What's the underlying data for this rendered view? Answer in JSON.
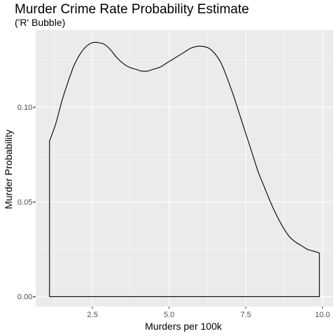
{
  "chart_data": {
    "type": "area",
    "title": "Murder Crime Rate Probability Estimate",
    "subtitle": "('R' Bubble)",
    "xlabel": "Murders per 100k",
    "ylabel": "Murder Probability",
    "xlim": [
      0.65,
      10.35
    ],
    "ylim": [
      -0.0053,
      0.1406
    ],
    "x_ticks": [
      {
        "value": 2.5,
        "label": "2.5"
      },
      {
        "value": 5.0,
        "label": "5.0"
      },
      {
        "value": 7.5,
        "label": "7.5"
      },
      {
        "value": 10.0,
        "label": "10.0"
      }
    ],
    "y_ticks": [
      {
        "value": 0.0,
        "label": "0.00-"
      },
      {
        "value": 0.05,
        "label": "0.05-"
      },
      {
        "value": 0.1,
        "label": "0.10-"
      }
    ],
    "grid": true,
    "fill": "none",
    "line_color": "#000000",
    "series": [
      {
        "x": [
          1.1,
          1.3,
          1.5,
          1.7,
          1.9,
          2.1,
          2.3,
          2.5,
          2.7,
          2.9,
          3.1,
          3.3,
          3.5,
          3.7,
          3.9,
          4.1,
          4.3,
          4.5,
          4.7,
          4.9,
          5.1,
          5.3,
          5.5,
          5.7,
          5.9,
          6.1,
          6.3,
          6.5,
          6.7,
          6.9,
          7.1,
          7.3,
          7.5,
          7.7,
          7.9,
          8.1,
          8.3,
          8.5,
          8.7,
          8.9,
          9.1,
          9.3,
          9.5,
          9.7,
          9.9
        ],
        "y": [
          0.082,
          0.091,
          0.103,
          0.113,
          0.122,
          0.128,
          0.132,
          0.134,
          0.134,
          0.133,
          0.13,
          0.126,
          0.123,
          0.121,
          0.12,
          0.119,
          0.119,
          0.12,
          0.121,
          0.123,
          0.125,
          0.127,
          0.129,
          0.131,
          0.132,
          0.132,
          0.131,
          0.128,
          0.123,
          0.115,
          0.106,
          0.096,
          0.086,
          0.076,
          0.066,
          0.058,
          0.05,
          0.043,
          0.037,
          0.032,
          0.029,
          0.027,
          0.025,
          0.024,
          0.023
        ]
      }
    ]
  }
}
